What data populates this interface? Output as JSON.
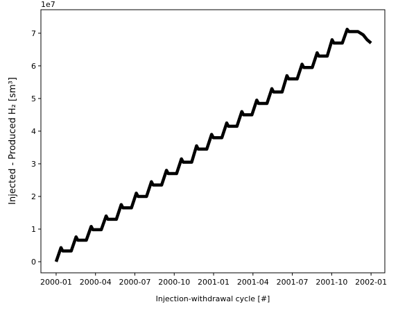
{
  "chart_data": {
    "type": "line",
    "x_label": "Injection-withdrawal cycle [#]",
    "y_label": "Injected - Produced H₂ [sm³]",
    "offset_label": "1e7",
    "x": [
      0,
      0.37,
      0.5,
      1.15,
      1.52,
      1.65,
      2.3,
      2.67,
      2.8,
      3.44,
      3.81,
      3.94,
      4.59,
      4.96,
      5.09,
      5.74,
      6.11,
      6.24,
      6.89,
      7.26,
      7.39,
      8.04,
      8.41,
      8.54,
      9.18,
      9.55,
      9.68,
      10.33,
      10.7,
      10.83,
      11.48,
      11.85,
      11.98,
      12.63,
      13.0,
      13.13,
      13.78,
      14.15,
      14.28,
      14.92,
      15.29,
      15.42,
      16.07,
      16.44,
      16.57,
      17.22,
      17.59,
      17.72,
      18.37,
      18.74,
      18.87,
      19.52,
      19.89,
      20.02,
      20.66,
      21.03,
      21.16,
      21.81,
      22.18,
      22.31,
      23.0,
      23.4,
      23.7,
      24.0
    ],
    "series": [
      {
        "color": "#000000",
        "values": [
          0,
          4300000,
          3300000,
          3300000,
          7600000,
          6600000,
          6600000,
          10800000,
          9800000,
          9800000,
          14000000,
          13000000,
          13000000,
          17500000,
          16500000,
          16500000,
          21000000,
          20000000,
          20000000,
          24500000,
          23500000,
          23500000,
          28000000,
          27000000,
          27000000,
          31500000,
          30500000,
          30500000,
          35500000,
          34500000,
          34500000,
          39000000,
          38000000,
          38000000,
          42500000,
          41500000,
          41500000,
          46000000,
          45000000,
          45000000,
          49500000,
          48500000,
          48500000,
          53000000,
          52000000,
          52000000,
          57000000,
          56000000,
          56000000,
          60500000,
          59500000,
          59500000,
          64000000,
          63000000,
          63000000,
          68000000,
          67000000,
          67000000,
          71200000,
          70500000,
          70500000,
          69500000,
          68000000,
          67000000
        ]
      }
    ],
    "xlim": [
      -1.16,
      25.05
    ],
    "xticks": [
      {
        "value": 0,
        "label": "2000-01"
      },
      {
        "value": 3,
        "label": "2000-04"
      },
      {
        "value": 6,
        "label": "2000-07"
      },
      {
        "value": 9,
        "label": "2000-10"
      },
      {
        "value": 12,
        "label": "2001-01"
      },
      {
        "value": 15,
        "label": "2001-04"
      },
      {
        "value": 18,
        "label": "2001-07"
      },
      {
        "value": 21,
        "label": "2001-10"
      },
      {
        "value": 24,
        "label": "2002-01"
      }
    ],
    "ylim": [
      -3400000,
      77200000
    ],
    "yticks": [
      {
        "value": 0,
        "label": "0"
      },
      {
        "value": 10000000,
        "label": "1"
      },
      {
        "value": 20000000,
        "label": "2"
      },
      {
        "value": 30000000,
        "label": "3"
      },
      {
        "value": 40000000,
        "label": "4"
      },
      {
        "value": 50000000,
        "label": "5"
      },
      {
        "value": 60000000,
        "label": "6"
      },
      {
        "value": 70000000,
        "label": "7"
      }
    ],
    "grid": false
  }
}
